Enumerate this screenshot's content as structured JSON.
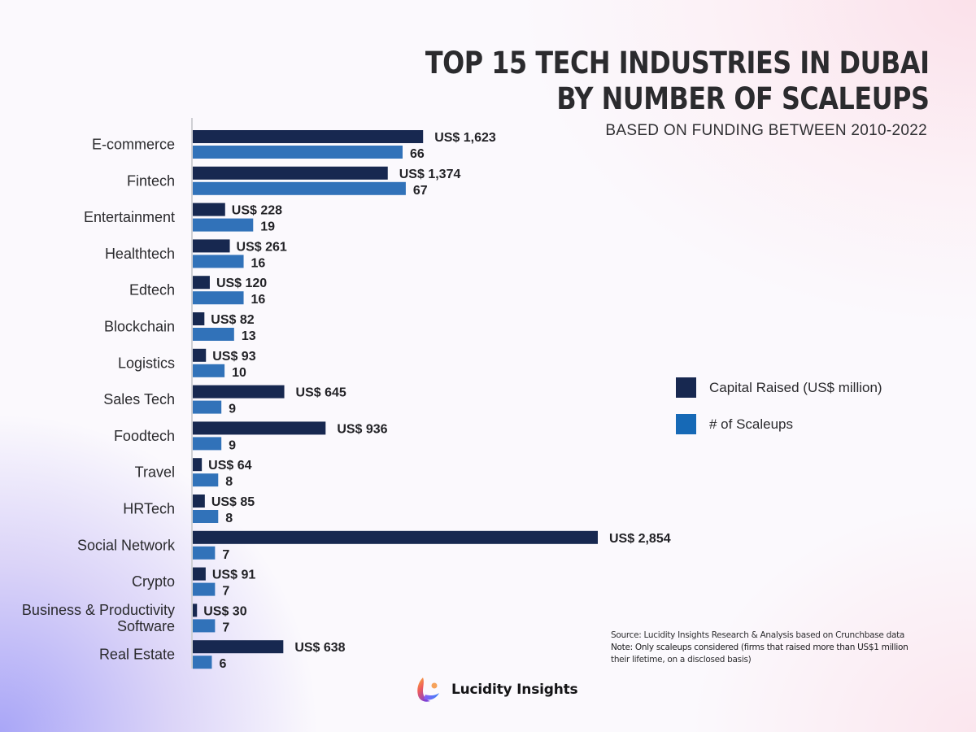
{
  "header": {
    "title_line1": "TOP 15 TECH INDUSTRIES IN DUBAI",
    "title_line2": "BY NUMBER OF SCALEUPS",
    "subtitle": "BASED ON FUNDING BETWEEN 2010-2022"
  },
  "colors": {
    "capital": "#172850",
    "scaleups": "#3172b9",
    "legend_scaleups": "#1669b6",
    "axis": "#cfcfd4"
  },
  "legend": [
    {
      "label": "Capital Raised (US$ million)",
      "series": "capital"
    },
    {
      "label": "# of Scaleups",
      "series": "scaleups"
    }
  ],
  "notes": {
    "source": "Source: Lucidity Insights Research & Analysis based on Crunchbase data",
    "note": "Note: Only scaleups considered (firms that raised more than US$1 million",
    "note_cont": "their lifetime, on a disclosed basis)"
  },
  "brand": {
    "name": "Lucidity Insights",
    "logo_icon": "lucidity-logo-icon"
  },
  "chart_data": {
    "type": "bar",
    "orientation": "horizontal",
    "title": "TOP 15 TECH INDUSTRIES IN DUBAI BY NUMBER OF SCALEUPS",
    "subtitle": "BASED ON FUNDING BETWEEN 2010-2022",
    "xlabel": "",
    "ylabel": "",
    "grid": false,
    "legend_position": "right",
    "categories": [
      [
        "E-commerce"
      ],
      [
        "Fintech"
      ],
      [
        "Entertainment"
      ],
      [
        "Healthtech"
      ],
      [
        "Edtech"
      ],
      [
        "Blockchain"
      ],
      [
        "Logistics"
      ],
      [
        "Sales Tech"
      ],
      [
        "Foodtech"
      ],
      [
        "Travel"
      ],
      [
        "HRTech"
      ],
      [
        "Social Network"
      ],
      [
        "Crypto"
      ],
      [
        "Business & Productivity",
        "Software"
      ],
      [
        "Real Estate"
      ]
    ],
    "series": [
      {
        "name": "Capital Raised (US$ million)",
        "key": "capital",
        "values": [
          1623,
          1374,
          228,
          261,
          120,
          82,
          93,
          645,
          936,
          64,
          85,
          2854,
          91,
          30,
          638
        ],
        "labels": [
          "US$ 1,623",
          "US$ 1,374",
          "US$ 228",
          "US$ 261",
          "US$ 120",
          "US$ 82",
          "US$ 93",
          "US$ 645",
          "US$ 936",
          "US$ 64",
          "US$ 85",
          "US$ 2,854",
          "US$ 91",
          "US$ 30",
          "US$ 638"
        ]
      },
      {
        "name": "# of Scaleups",
        "key": "scaleups",
        "values": [
          66,
          67,
          19,
          16,
          16,
          13,
          10,
          9,
          9,
          8,
          8,
          7,
          7,
          7,
          6
        ],
        "labels": [
          "66",
          "67",
          "19",
          "16",
          "16",
          "13",
          "10",
          "9",
          "9",
          "8",
          "8",
          "7",
          "7",
          "7",
          "6"
        ]
      }
    ]
  }
}
